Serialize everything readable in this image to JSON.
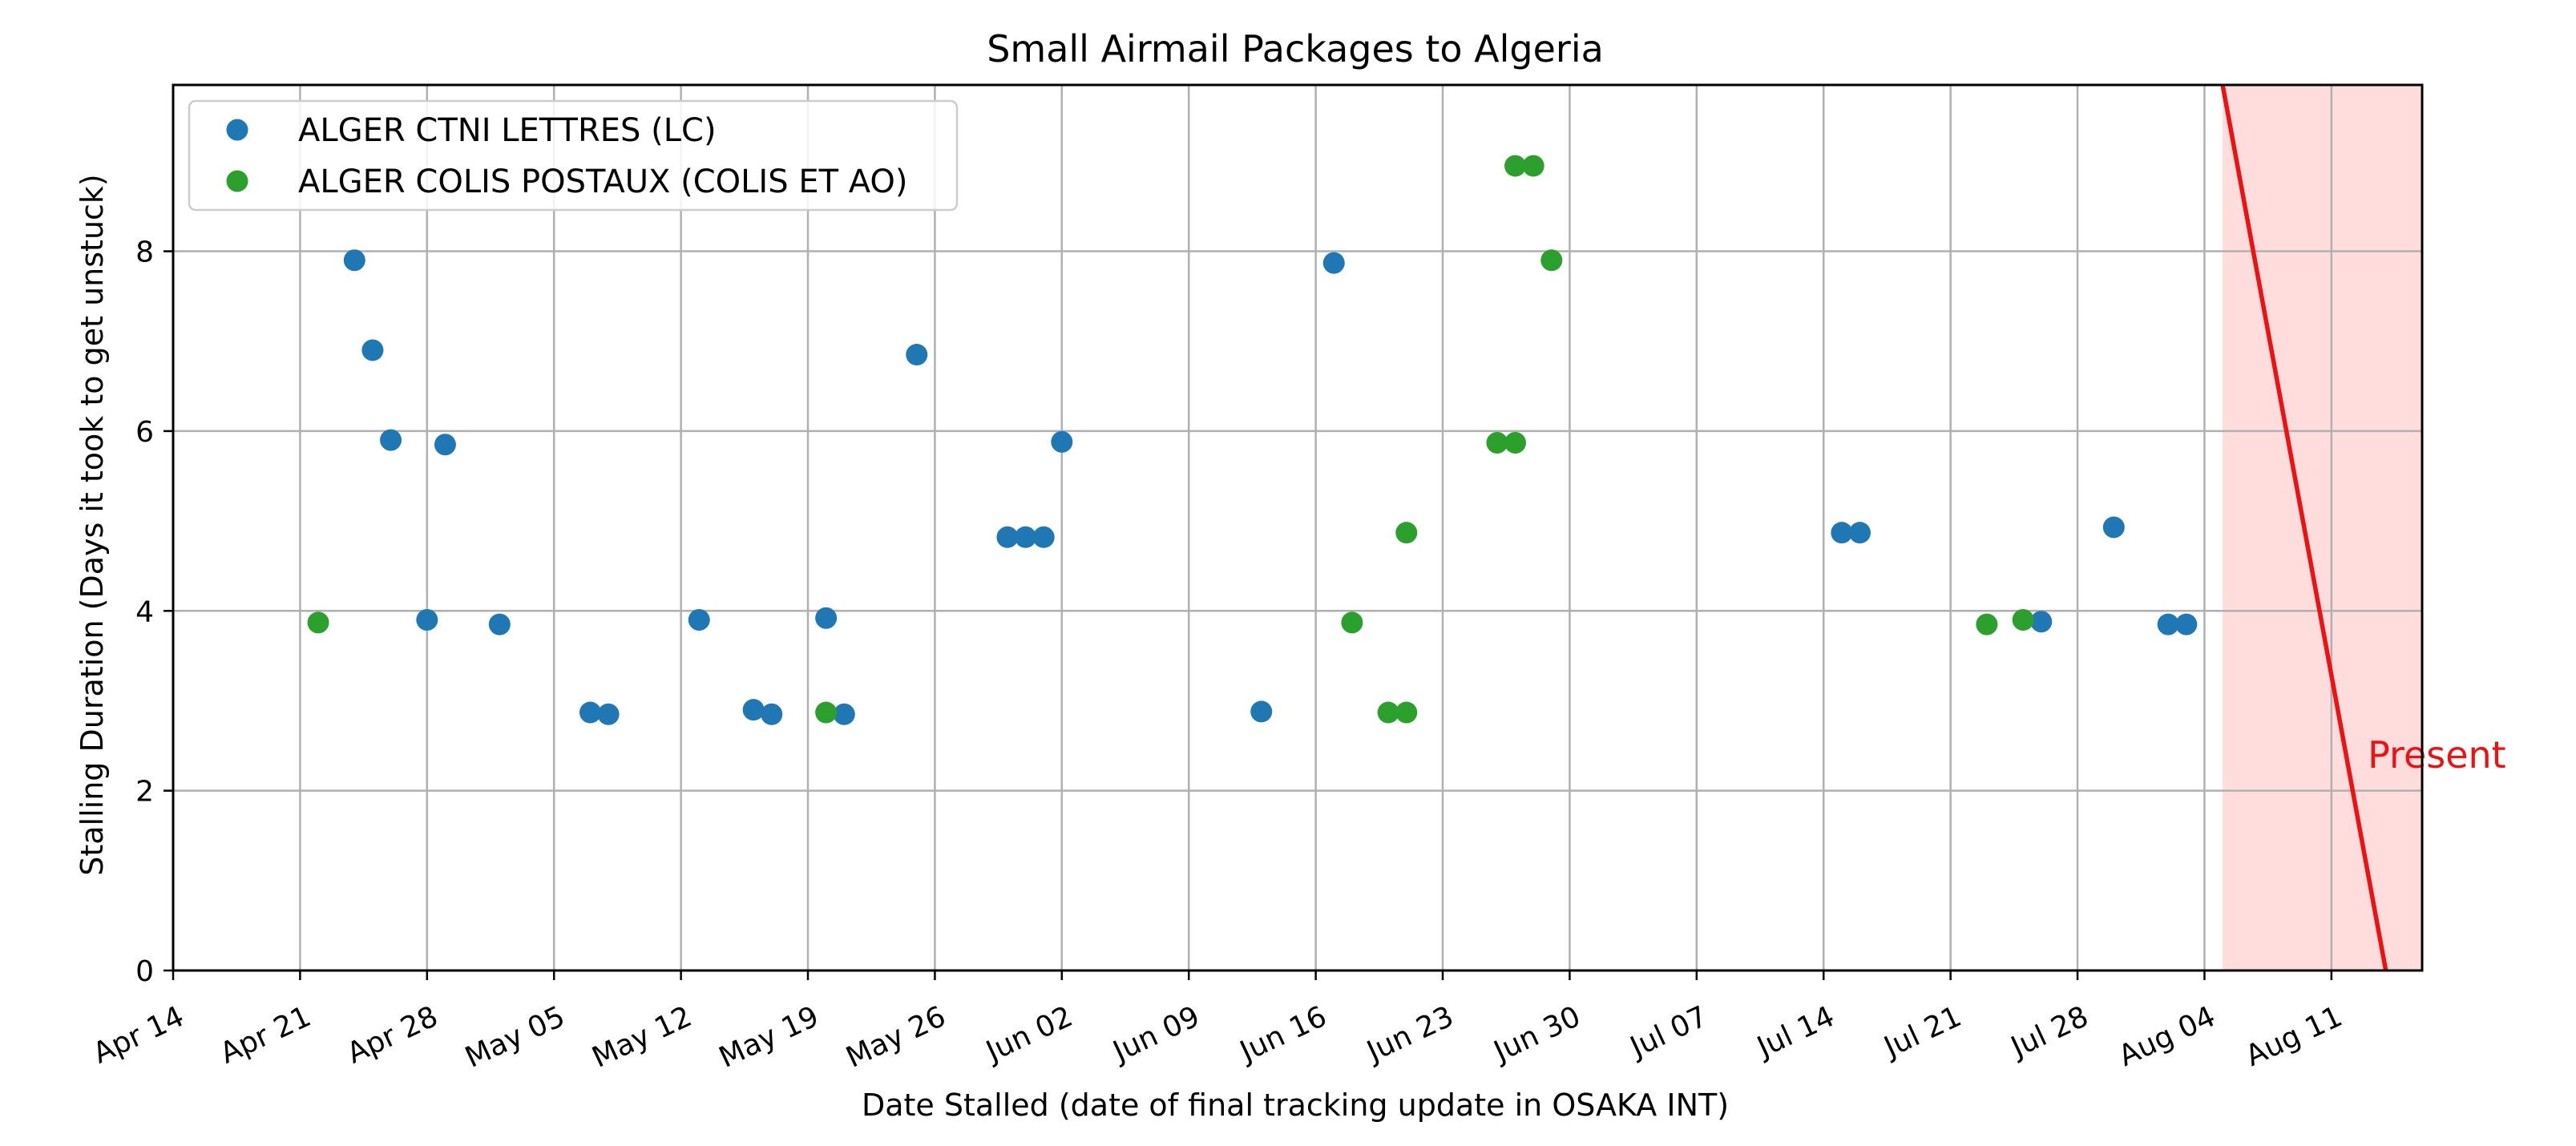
{
  "chart_data": {
    "type": "scatter",
    "title": "Small Airmail Packages to Algeria",
    "xlabel": "Date Stalled (date of final tracking update in OSAKA INT)",
    "ylabel": "Stalling Duration (Days it took to get unstuck)",
    "x_type": "date",
    "xlim": [
      "2024-04-14",
      "2024-08-16"
    ],
    "ylim": [
      0,
      9.85
    ],
    "x_ticks": [
      {
        "date": "2024-04-14",
        "label": "Apr 14"
      },
      {
        "date": "2024-04-21",
        "label": "Apr 21"
      },
      {
        "date": "2024-04-28",
        "label": "Apr 28"
      },
      {
        "date": "2024-05-05",
        "label": "May 05"
      },
      {
        "date": "2024-05-12",
        "label": "May 12"
      },
      {
        "date": "2024-05-19",
        "label": "May 19"
      },
      {
        "date": "2024-05-26",
        "label": "May 26"
      },
      {
        "date": "2024-06-02",
        "label": "Jun 02"
      },
      {
        "date": "2024-06-09",
        "label": "Jun 09"
      },
      {
        "date": "2024-06-16",
        "label": "Jun 16"
      },
      {
        "date": "2024-06-23",
        "label": "Jun 23"
      },
      {
        "date": "2024-06-30",
        "label": "Jun 30"
      },
      {
        "date": "2024-07-07",
        "label": "Jul 07"
      },
      {
        "date": "2024-07-14",
        "label": "Jul 14"
      },
      {
        "date": "2024-07-21",
        "label": "Jul 21"
      },
      {
        "date": "2024-07-28",
        "label": "Jul 28"
      },
      {
        "date": "2024-08-04",
        "label": "Aug 04"
      },
      {
        "date": "2024-08-11",
        "label": "Aug 11"
      }
    ],
    "y_ticks": [
      0,
      2,
      4,
      6,
      8
    ],
    "grid": true,
    "legend_position": "top-left",
    "series": [
      {
        "name": "ALGER CTNI LETTRES (LC)",
        "color": "#1f77b4",
        "points": [
          {
            "x": "2024-04-24",
            "y": 7.9
          },
          {
            "x": "2024-04-25",
            "y": 6.9
          },
          {
            "x": "2024-04-26",
            "y": 5.9
          },
          {
            "x": "2024-04-28",
            "y": 3.9
          },
          {
            "x": "2024-04-29",
            "y": 5.85
          },
          {
            "x": "2024-05-02",
            "y": 3.85
          },
          {
            "x": "2024-05-07",
            "y": 2.87
          },
          {
            "x": "2024-05-08",
            "y": 2.85
          },
          {
            "x": "2024-05-13",
            "y": 3.9
          },
          {
            "x": "2024-05-16",
            "y": 2.9
          },
          {
            "x": "2024-05-17",
            "y": 2.85
          },
          {
            "x": "2024-05-20",
            "y": 3.92
          },
          {
            "x": "2024-05-21",
            "y": 2.85
          },
          {
            "x": "2024-05-25",
            "y": 6.85
          },
          {
            "x": "2024-05-30",
            "y": 4.82
          },
          {
            "x": "2024-05-31",
            "y": 4.82
          },
          {
            "x": "2024-06-01",
            "y": 4.82
          },
          {
            "x": "2024-06-02",
            "y": 5.88
          },
          {
            "x": "2024-06-13",
            "y": 2.88
          },
          {
            "x": "2024-06-17",
            "y": 7.87
          },
          {
            "x": "2024-07-15",
            "y": 4.87
          },
          {
            "x": "2024-07-16",
            "y": 4.87
          },
          {
            "x": "2024-07-26",
            "y": 3.88
          },
          {
            "x": "2024-07-30",
            "y": 4.93
          },
          {
            "x": "2024-08-02",
            "y": 3.85
          },
          {
            "x": "2024-08-03",
            "y": 3.85
          }
        ]
      },
      {
        "name": "ALGER COLIS POSTAUX (COLIS ET AO)",
        "color": "#2ca02c",
        "points": [
          {
            "x": "2024-04-22",
            "y": 3.87
          },
          {
            "x": "2024-05-20",
            "y": 2.87
          },
          {
            "x": "2024-06-18",
            "y": 3.87
          },
          {
            "x": "2024-06-20",
            "y": 2.87
          },
          {
            "x": "2024-06-21",
            "y": 2.87
          },
          {
            "x": "2024-06-21",
            "y": 4.87
          },
          {
            "x": "2024-06-26",
            "y": 5.87
          },
          {
            "x": "2024-06-27",
            "y": 5.87
          },
          {
            "x": "2024-06-27",
            "y": 8.95
          },
          {
            "x": "2024-06-28",
            "y": 8.95
          },
          {
            "x": "2024-06-29",
            "y": 7.9
          },
          {
            "x": "2024-07-23",
            "y": 3.85
          },
          {
            "x": "2024-07-25",
            "y": 3.9
          }
        ]
      }
    ],
    "annotations": [
      {
        "type": "line",
        "color": "#ee1111",
        "from": {
          "x": "2024-08-05",
          "y": 9.85
        },
        "to": {
          "x": "2024-08-14",
          "y": 0
        }
      },
      {
        "type": "shaded-region",
        "color": "#ffdddd",
        "x_from": "2024-08-05",
        "x_to": "2024-08-16"
      },
      {
        "type": "text",
        "text": "Present",
        "color": "#ee1111",
        "x": "2024-08-13",
        "y": 2.4
      }
    ]
  }
}
